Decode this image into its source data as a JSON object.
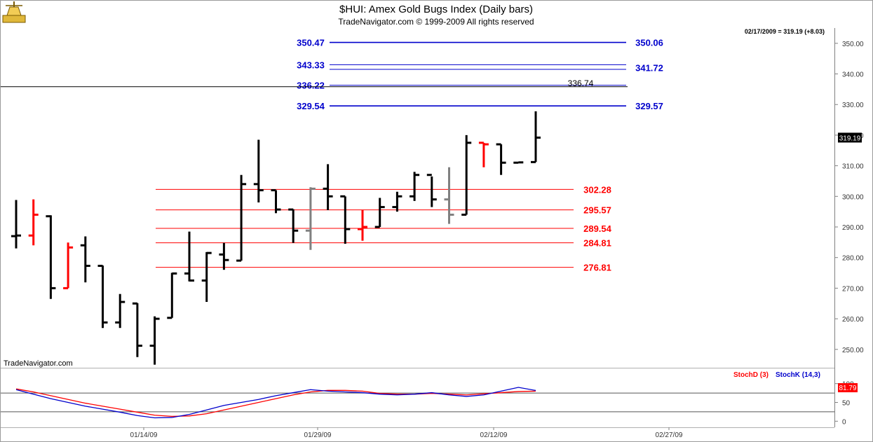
{
  "header": {
    "title": "$HUI:  Amex Gold Bugs Index  (Daily bars)",
    "copyright": "TradeNavigator.com © 1999-2009 All rights reserved",
    "quote": "02/17/2009 = 319.19 (+8.03)",
    "watermark": "TradeNavigator.com"
  },
  "colors": {
    "up_bar": "#000000",
    "down_bar": "#ff0000",
    "neutral_bar": "#808080",
    "resistance": "#0000cc",
    "support": "#ff0000",
    "stoch_d": "#ff0000",
    "stoch_k": "#0000cc"
  },
  "chart_data": [
    {
      "type": "ohlc",
      "title": "$HUI:  Amex Gold Bugs Index  (Daily bars)",
      "dates": [
        "01/02/09",
        "01/05/09",
        "01/06/09",
        "01/07/09",
        "01/08/09",
        "01/09/09",
        "01/12/09",
        "01/13/09",
        "01/14/09",
        "01/15/09",
        "01/16/09",
        "01/20/09",
        "01/21/09",
        "01/22/09",
        "01/23/09",
        "01/26/09",
        "01/27/09",
        "01/28/09",
        "01/29/09",
        "01/30/09",
        "02/02/09",
        "02/03/09",
        "02/04/09",
        "02/05/09",
        "02/06/09",
        "02/09/09",
        "02/10/09",
        "02/11/09",
        "02/12/09",
        "02/13/09",
        "02/17/09"
      ],
      "bars": [
        {
          "o": 287.0,
          "h": 298.8,
          "l": 283.0,
          "c": 287.2,
          "color": "black"
        },
        {
          "o": 287.2,
          "h": 299.0,
          "l": 284.0,
          "c": 294.0,
          "color": "red"
        },
        {
          "o": 293.5,
          "h": 293.8,
          "l": 266.5,
          "c": 270.0,
          "color": "black"
        },
        {
          "o": 270.0,
          "h": 284.9,
          "l": 270.0,
          "c": 283.3,
          "color": "red"
        },
        {
          "o": 284.0,
          "h": 286.9,
          "l": 271.9,
          "c": 277.3,
          "color": "black"
        },
        {
          "o": 277.3,
          "h": 277.4,
          "l": 257.0,
          "c": 258.8,
          "color": "black"
        },
        {
          "o": 258.8,
          "h": 268.1,
          "l": 257.0,
          "c": 265.5,
          "color": "black"
        },
        {
          "o": 265.0,
          "h": 265.1,
          "l": 247.5,
          "c": 251.2,
          "color": "black"
        },
        {
          "o": 251.2,
          "h": 260.8,
          "l": 245.0,
          "c": 260.0,
          "color": "black"
        },
        {
          "o": 260.3,
          "h": 275.0,
          "l": 260.3,
          "c": 274.8,
          "color": "black"
        },
        {
          "o": 274.8,
          "h": 288.5,
          "l": 272.2,
          "c": 272.5,
          "color": "black"
        },
        {
          "o": 272.5,
          "h": 281.8,
          "l": 265.5,
          "c": 281.5,
          "color": "black"
        },
        {
          "o": 281.0,
          "h": 284.8,
          "l": 276.0,
          "c": 279.2,
          "color": "black"
        },
        {
          "o": 279.0,
          "h": 307.0,
          "l": 279.0,
          "c": 304.0,
          "color": "black"
        },
        {
          "o": 304.0,
          "h": 318.5,
          "l": 298.0,
          "c": 302.0,
          "color": "black"
        },
        {
          "o": 302.0,
          "h": 302.0,
          "l": 294.5,
          "c": 295.7,
          "color": "black"
        },
        {
          "o": 295.7,
          "h": 295.8,
          "l": 284.8,
          "c": 288.8,
          "color": "black"
        },
        {
          "o": 288.8,
          "h": 303.0,
          "l": 282.5,
          "c": 302.5,
          "color": "gray"
        },
        {
          "o": 302.5,
          "h": 310.5,
          "l": 295.5,
          "c": 300.0,
          "color": "black"
        },
        {
          "o": 300.0,
          "h": 300.0,
          "l": 284.5,
          "c": 289.3,
          "color": "black"
        },
        {
          "o": 289.3,
          "h": 295.5,
          "l": 285.5,
          "c": 290.0,
          "color": "red"
        },
        {
          "o": 290.0,
          "h": 299.5,
          "l": 290.0,
          "c": 296.5,
          "color": "black"
        },
        {
          "o": 296.5,
          "h": 301.5,
          "l": 295.0,
          "c": 300.0,
          "color": "black"
        },
        {
          "o": 300.0,
          "h": 308.0,
          "l": 298.5,
          "c": 307.0,
          "color": "black"
        },
        {
          "o": 307.0,
          "h": 306.5,
          "l": 296.5,
          "c": 299.0,
          "color": "black"
        },
        {
          "o": 299.0,
          "h": 309.5,
          "l": 291.0,
          "c": 294.0,
          "color": "gray"
        },
        {
          "o": 294.0,
          "h": 320.0,
          "l": 294.0,
          "c": 317.5,
          "color": "black"
        },
        {
          "o": 317.5,
          "h": 317.5,
          "l": 309.5,
          "c": 317.0,
          "color": "red"
        },
        {
          "o": 317.0,
          "h": 317.0,
          "l": 307.0,
          "c": 311.0,
          "color": "black"
        },
        {
          "o": 311.0,
          "h": 311.2,
          "l": 311.0,
          "c": 311.1,
          "color": "black"
        },
        {
          "o": 311.2,
          "h": 327.8,
          "l": 311.2,
          "c": 319.19,
          "color": "black"
        }
      ],
      "y_ticks": [
        250,
        260,
        270,
        280,
        290,
        300,
        310,
        320,
        330,
        340,
        350
      ],
      "ylim": [
        244.0,
        355.0
      ],
      "last_price_label": "319.19",
      "resistance_levels": [
        {
          "left_label": "350.47",
          "right_label": "350.06",
          "value": 350.3
        },
        {
          "left_label": "343.33",
          "right_label": "341.72",
          "value": 343.0
        },
        {
          "left_label": "",
          "right_label": "",
          "value": 341.5
        },
        {
          "left_label": "336.22",
          "right_label": "",
          "value": 336.3
        },
        {
          "left_label": "329.54",
          "right_label": "329.57",
          "value": 329.55
        }
      ],
      "horizontal_black_line": {
        "value": 336.74,
        "label": "336.74"
      },
      "support_levels": [
        {
          "label": "302.28",
          "value": 302.28
        },
        {
          "label": "295.57",
          "value": 295.57
        },
        {
          "label": "289.54",
          "value": 289.54
        },
        {
          "label": "284.81",
          "value": 284.81
        },
        {
          "label": "276.81",
          "value": 276.81
        }
      ],
      "grid": false
    },
    {
      "type": "line",
      "series": [
        {
          "name": "StochD (3)",
          "values": [
            86,
            78,
            68,
            58,
            48,
            40,
            32,
            24,
            16,
            13,
            14,
            20,
            30,
            40,
            50,
            60,
            70,
            78,
            82,
            82,
            80,
            74,
            72,
            72,
            74,
            72,
            70,
            73,
            76,
            79,
            80
          ]
        },
        {
          "name": "StochK (14,3)",
          "values": [
            84,
            72,
            60,
            50,
            40,
            32,
            24,
            15,
            9,
            10,
            18,
            30,
            42,
            50,
            58,
            68,
            76,
            84,
            80,
            78,
            76,
            72,
            70,
            72,
            76,
            70,
            66,
            70,
            80,
            90,
            81.79
          ]
        }
      ],
      "y_ticks": [
        0,
        50,
        100
      ],
      "ylim": [
        -5,
        105
      ],
      "reference_lines": [
        75,
        25
      ],
      "last_value_label": "81.79",
      "x_tick_labels": [
        "01/14/09",
        "01/29/09",
        "02/12/09",
        "02/27/09"
      ]
    }
  ]
}
